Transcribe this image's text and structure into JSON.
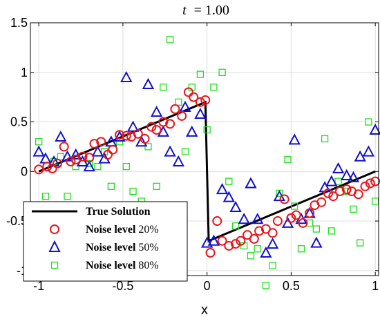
{
  "chart_data": {
    "type": "scatter",
    "title": "t = 1.00",
    "title_var": "t",
    "title_value": "= 1.00",
    "xlabel": "x",
    "ylabel": "",
    "xlim": [
      -1.05,
      1.02
    ],
    "ylim": [
      -1.05,
      1.5
    ],
    "x_ticks": [
      -1,
      -0.5,
      0,
      0.5,
      1
    ],
    "x_tick_labels": [
      "-1",
      "-0.5",
      "0",
      "0.5",
      "1"
    ],
    "y_ticks": [
      1.5,
      1,
      0.5,
      0,
      -0.5,
      -1
    ],
    "y_tick_labels": [
      "1.5",
      "1",
      "0.5",
      "0",
      "-0.5",
      "-1"
    ],
    "grid": true,
    "legend_position": "bottom-left",
    "series": [
      {
        "name": "True Solution",
        "kind": "line",
        "color": "#000000",
        "x": [
          -1,
          -0.01,
          0.01,
          1
        ],
        "y": [
          0,
          0.7,
          -0.7,
          0
        ]
      },
      {
        "name_bold": "Noise level",
        "name_plain": "20%",
        "kind": "marker",
        "marker": "circle",
        "color": "#e8161c",
        "x": [
          -1.0,
          -0.95,
          -0.92,
          -0.89,
          -0.85,
          -0.81,
          -0.78,
          -0.74,
          -0.7,
          -0.67,
          -0.63,
          -0.59,
          -0.56,
          -0.52,
          -0.48,
          -0.45,
          -0.41,
          -0.37,
          -0.33,
          -0.3,
          -0.26,
          -0.22,
          -0.19,
          -0.15,
          -0.11,
          -0.08,
          -0.04,
          -0.01,
          0.02,
          0.06,
          0.09,
          0.13,
          0.17,
          0.2,
          0.24,
          0.28,
          0.31,
          0.35,
          0.39,
          0.42,
          0.46,
          0.5,
          0.53,
          0.57,
          0.61,
          0.64,
          0.68,
          0.72,
          0.75,
          0.79,
          0.83,
          0.86,
          0.9,
          0.94,
          0.97,
          1.0
        ],
        "y": [
          0.02,
          0.05,
          0.03,
          0.08,
          0.25,
          0.1,
          0.12,
          0.15,
          0.14,
          0.28,
          0.3,
          0.17,
          0.22,
          0.37,
          0.36,
          0.35,
          0.38,
          0.33,
          0.45,
          0.42,
          0.5,
          0.48,
          0.63,
          0.56,
          0.8,
          0.75,
          0.7,
          0.72,
          -0.82,
          -0.5,
          -0.7,
          -0.75,
          -0.73,
          -0.7,
          -0.64,
          -0.68,
          -0.6,
          -0.58,
          -0.62,
          -0.5,
          -0.28,
          -0.47,
          -0.44,
          -0.52,
          -0.42,
          -0.34,
          -0.31,
          -0.22,
          -0.25,
          -0.2,
          -0.18,
          -0.2,
          -0.23,
          -0.15,
          -0.12,
          -0.1
        ]
      },
      {
        "name_bold": "Noise level",
        "name_plain": "50%",
        "kind": "marker",
        "marker": "triangle",
        "color": "#1010d0",
        "x": [
          -1.0,
          -0.96,
          -0.91,
          -0.87,
          -0.83,
          -0.78,
          -0.74,
          -0.7,
          -0.65,
          -0.61,
          -0.57,
          -0.52,
          -0.48,
          -0.44,
          -0.39,
          -0.35,
          -0.3,
          -0.26,
          -0.22,
          -0.17,
          -0.13,
          -0.09,
          -0.04,
          0.0,
          0.04,
          0.09,
          0.13,
          0.17,
          0.22,
          0.26,
          0.3,
          0.35,
          0.39,
          0.43,
          0.48,
          0.52,
          0.56,
          0.61,
          0.65,
          0.7,
          0.74,
          0.78,
          0.83,
          0.87,
          0.91,
          0.96,
          1.0
        ],
        "y": [
          0.2,
          0.13,
          0.1,
          0.35,
          0.15,
          0.17,
          0.1,
          0.05,
          0.2,
          0.13,
          0.3,
          0.35,
          0.95,
          0.45,
          0.3,
          0.88,
          0.6,
          0.4,
          0.2,
          0.1,
          0.65,
          0.4,
          0.58,
          -0.72,
          -0.7,
          -0.18,
          -0.26,
          -0.36,
          -0.48,
          -0.12,
          -0.48,
          -0.82,
          -0.73,
          -0.25,
          -0.52,
          0.32,
          -0.48,
          -0.42,
          -0.72,
          -0.16,
          -0.1,
          0.03,
          -0.04,
          -0.06,
          0.15,
          0.2,
          0.42
        ]
      },
      {
        "name_bold": "Noise level",
        "name_plain": "80%",
        "kind": "marker",
        "marker": "square",
        "color": "#1ee01a",
        "x": [
          -1.0,
          -0.96,
          -0.91,
          -0.87,
          -0.83,
          -0.78,
          -0.74,
          -0.7,
          -0.65,
          -0.61,
          -0.57,
          -0.52,
          -0.48,
          -0.44,
          -0.39,
          -0.35,
          -0.3,
          -0.26,
          -0.22,
          -0.17,
          -0.13,
          -0.09,
          -0.04,
          0.0,
          0.04,
          0.09,
          0.13,
          0.17,
          0.22,
          0.26,
          0.3,
          0.35,
          0.39,
          0.43,
          0.48,
          0.52,
          0.56,
          0.61,
          0.65,
          0.7,
          0.74,
          0.78,
          0.83,
          0.87,
          0.91,
          0.96,
          1.0
        ],
        "y": [
          0.3,
          -0.25,
          0.1,
          0.15,
          -0.25,
          0.05,
          -0.45,
          0.08,
          0.05,
          0.2,
          -0.15,
          0.3,
          0.05,
          -0.2,
          -0.3,
          0.25,
          -0.15,
          0.85,
          1.33,
          0.7,
          0.2,
          0.85,
          0.98,
          0.42,
          0.85,
          1.0,
          -0.1,
          -0.55,
          -0.75,
          -0.85,
          -0.78,
          -1.15,
          -0.95,
          -0.22,
          0.12,
          -0.35,
          -0.78,
          -0.52,
          -0.58,
          0.33,
          -0.6,
          -0.1,
          -0.2,
          -0.38,
          -0.72,
          0.5,
          -0.3
        ]
      }
    ]
  }
}
